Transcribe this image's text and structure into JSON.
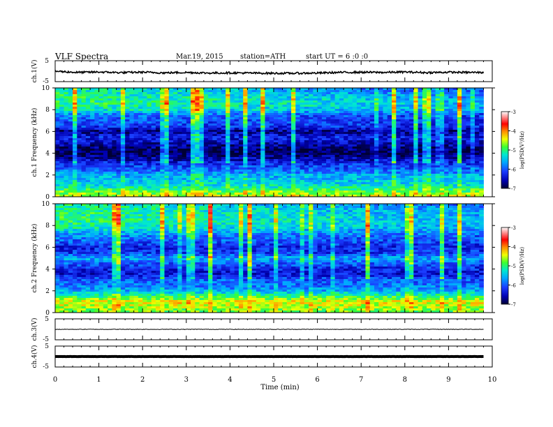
{
  "header": {
    "title": "VLF Spectra",
    "date": "Mar.19, 2015",
    "station": "station=ATH",
    "start": "start UT =  6 :0 :0"
  },
  "colors": {
    "colormap": [
      "#000033",
      "#0000b0",
      "#1a3cff",
      "#00a8ff",
      "#00e8d0",
      "#3cff30",
      "#f0ff00",
      "#ff9000",
      "#ff0000",
      "#ff9090",
      "#ffffff"
    ]
  },
  "chart_data": [
    {
      "type": "line",
      "panel": "ch1-waveform",
      "ylabel": "ch.1(V)",
      "ylim": [
        -5,
        5
      ],
      "yticks": [
        "5",
        "-5"
      ],
      "x": [
        0,
        0.5,
        1,
        1.5,
        2,
        2.5,
        3,
        3.5,
        4,
        4.5,
        5,
        5.5,
        6,
        6.5,
        7,
        7.5,
        8,
        8.5,
        9,
        9.5,
        9.8
      ],
      "values": [
        0.0,
        -0.6,
        -0.4,
        -0.7,
        -0.5,
        -0.8,
        -0.6,
        -0.9,
        -0.8,
        -0.9,
        -1.0,
        -1.0,
        -0.9,
        -0.6,
        -0.5,
        -0.6,
        -0.4,
        -0.7,
        -0.5,
        -0.6,
        -0.6
      ]
    },
    {
      "type": "heatmap",
      "panel": "ch1-spectrogram",
      "ylabel": "ch.1 Frequency (kHz)",
      "ylim": [
        0,
        10
      ],
      "yticks": [
        "0",
        "2",
        "4",
        "6",
        "8",
        "10"
      ],
      "colorbar": {
        "label": "log(PSD(V²/Hz)",
        "range": [
          -7,
          -3
        ],
        "ticks": [
          "-3",
          "-4",
          "-5",
          "-6",
          "-7"
        ]
      },
      "psd_profile": {
        "freq_khz": [
          0,
          0.5,
          1,
          1.5,
          2,
          2.5,
          3,
          3.5,
          4,
          4.5,
          5,
          5.5,
          6,
          6.5,
          7,
          7.5,
          8,
          8.5,
          9,
          9.5,
          10
        ],
        "log_psd": [
          -4.5,
          -4.8,
          -5.3,
          -5.5,
          -5.6,
          -6.0,
          -6.2,
          -6.6,
          -6.9,
          -6.8,
          -6.5,
          -6.3,
          -6.7,
          -6.1,
          -6.0,
          -5.8,
          -5.2,
          -5.0,
          -5.0,
          -5.1,
          -5.2
        ]
      }
    },
    {
      "type": "heatmap",
      "panel": "ch2-spectrogram",
      "ylabel": "ch.2 Frequency (kHz)",
      "ylim": [
        0,
        10
      ],
      "yticks": [
        "0",
        "2",
        "4",
        "6",
        "8",
        "10"
      ],
      "colorbar": {
        "label": "log(PSD(V²/Hz)",
        "range": [
          -7,
          -3
        ],
        "ticks": [
          "-3",
          "-4",
          "-5",
          "-6",
          "-7"
        ]
      },
      "psd_profile": {
        "freq_khz": [
          0,
          0.5,
          1,
          1.5,
          2,
          2.5,
          3,
          3.5,
          4,
          4.5,
          5,
          5.5,
          6,
          6.5,
          7,
          7.5,
          8,
          8.5,
          9,
          9.5,
          10
        ],
        "log_psd": [
          -4.8,
          -4.6,
          -4.4,
          -5.0,
          -5.6,
          -5.9,
          -6.0,
          -6.4,
          -6.3,
          -6.0,
          -5.6,
          -6.2,
          -6.3,
          -6.0,
          -5.8,
          -5.4,
          -5.1,
          -5.0,
          -5.0,
          -5.0,
          -5.1
        ]
      }
    },
    {
      "type": "line",
      "panel": "ch3-waveform",
      "ylabel": "ch.3(V)",
      "ylim": [
        -5,
        5
      ],
      "yticks": [
        "5",
        "-5"
      ],
      "x": [
        0,
        9.8
      ],
      "values": [
        0,
        0
      ]
    },
    {
      "type": "line",
      "panel": "ch4-waveform",
      "ylabel": "ch.4(V)",
      "ylim": [
        -5,
        5
      ],
      "yticks": [
        "5",
        "-5"
      ],
      "x": [
        0,
        9.8
      ],
      "values": [
        0,
        0
      ]
    },
    {
      "type": "axis",
      "panel": "time-axis",
      "xlabel": "Time  (min)",
      "xlim": [
        0,
        10
      ],
      "xticks": [
        "0",
        "1",
        "2",
        "3",
        "4",
        "5",
        "6",
        "7",
        "8",
        "9",
        "10"
      ]
    }
  ]
}
